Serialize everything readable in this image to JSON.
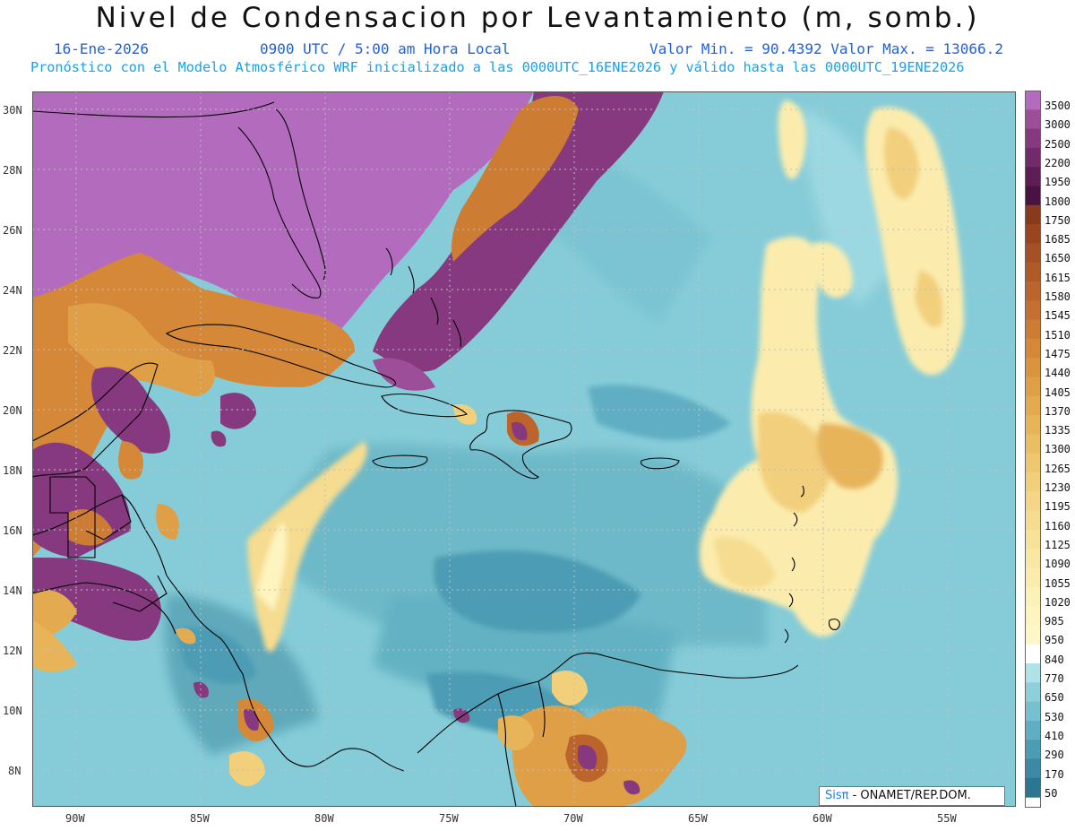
{
  "header": {
    "title": "Nivel de Condensacion por Levantamiento (m, somb.)",
    "date": "16-Ene-2026",
    "time": "0900 UTC / 5:00 am Hora Local",
    "min_max": "Valor Min. = 90.4392  Valor Max. = 13066.2",
    "model_line": "Pronóstico con el Modelo Atmosférico WRF inicializado a las 0000UTC_16ENE2026 y válido hasta las  0000UTC_19ENE2026"
  },
  "axes": {
    "lat_labels": [
      "30N",
      "28N",
      "26N",
      "24N",
      "22N",
      "20N",
      "18N",
      "16N",
      "14N",
      "12N",
      "10N",
      "8N"
    ],
    "lon_labels": [
      "90W",
      "85W",
      "80W",
      "75W",
      "70W",
      "65W",
      "60W",
      "55W"
    ]
  },
  "colorbar": {
    "levels": [
      "3500",
      "3000",
      "2500",
      "2200",
      "1950",
      "1800",
      "1750",
      "1685",
      "1650",
      "1615",
      "1580",
      "1545",
      "1510",
      "1475",
      "1440",
      "1405",
      "1370",
      "1335",
      "1300",
      "1265",
      "1230",
      "1195",
      "1160",
      "1125",
      "1090",
      "1055",
      "1020",
      "985",
      "950",
      "840",
      "770",
      "650",
      "530",
      "410",
      "290",
      "170",
      "50"
    ],
    "colors": [
      "#b36bbd",
      "#9c4f98",
      "#86397f",
      "#722a6b",
      "#5e1d54",
      "#4a1242",
      "#8a3a1c",
      "#9a4520",
      "#a55025",
      "#b05a28",
      "#bb652c",
      "#c47030",
      "#cd7c34",
      "#d48838",
      "#da943f",
      "#df9f47",
      "#e4aa50",
      "#e8b45a",
      "#ecbe64",
      "#efc76f",
      "#f2cf7b",
      "#f4d686",
      "#f6dc90",
      "#f8e29a",
      "#f9e7a4",
      "#fbecad",
      "#fcf1b6",
      "#fdf4bf",
      "#fdf7c8",
      "#ffffff",
      "#aee3e8",
      "#8dd0dc",
      "#76c0d0",
      "#60aec3",
      "#4c9cb4",
      "#3b89a5",
      "#2c7694"
    ]
  },
  "credit": {
    "logo": "Sisπ",
    "text": "- ONAMET/REP.DOM."
  }
}
